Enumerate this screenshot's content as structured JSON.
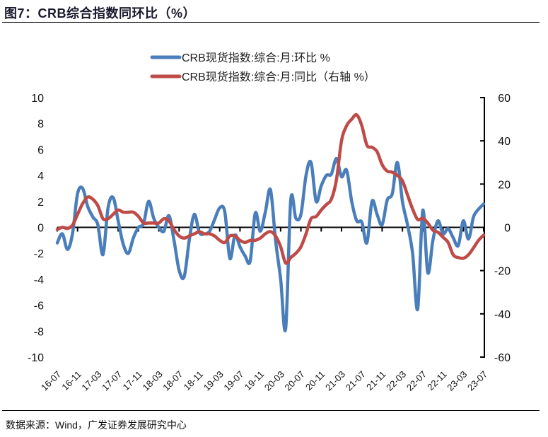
{
  "header": {
    "title": "图7：CRB综合指数同环比（%）"
  },
  "footer": {
    "source": "数据来源：Wind，广发证券发展研究中心"
  },
  "chart_data": {
    "type": "line",
    "title": "",
    "legend_position": "top",
    "grid": false,
    "left_axis": {
      "ylim": [
        -10,
        10
      ],
      "ticks": [
        "10",
        "8",
        "6",
        "4",
        "2",
        "0",
        "-2",
        "-4",
        "-6",
        "-8",
        "-10"
      ]
    },
    "right_axis": {
      "ylim": [
        -60,
        60
      ],
      "ticks": [
        "60",
        "40",
        "20",
        "0",
        "-20",
        "-40",
        "-60"
      ]
    },
    "x_tick_labels": [
      "16-07",
      "16-11",
      "17-03",
      "17-07",
      "17-11",
      "18-03",
      "18-07",
      "18-11",
      "19-03",
      "19-07",
      "19-11",
      "20-03",
      "20-07",
      "20-11",
      "21-03",
      "21-07",
      "21-11",
      "22-03",
      "22-07",
      "22-11",
      "23-03",
      "23-07"
    ],
    "x": [
      "16-07",
      "16-08",
      "16-09",
      "16-10",
      "16-11",
      "16-12",
      "17-01",
      "17-02",
      "17-03",
      "17-04",
      "17-05",
      "17-06",
      "17-07",
      "17-08",
      "17-09",
      "17-10",
      "17-11",
      "17-12",
      "18-01",
      "18-02",
      "18-03",
      "18-04",
      "18-05",
      "18-06",
      "18-07",
      "18-08",
      "18-09",
      "18-10",
      "18-11",
      "18-12",
      "19-01",
      "19-02",
      "19-03",
      "19-04",
      "19-05",
      "19-06",
      "19-07",
      "19-08",
      "19-09",
      "19-10",
      "19-11",
      "19-12",
      "20-01",
      "20-02",
      "20-03",
      "20-04",
      "20-05",
      "20-06",
      "20-07",
      "20-08",
      "20-09",
      "20-10",
      "20-11",
      "20-12",
      "21-01",
      "21-02",
      "21-03",
      "21-04",
      "21-05",
      "21-06",
      "21-07",
      "21-08",
      "21-09",
      "21-10",
      "21-11",
      "21-12",
      "22-01",
      "22-02",
      "22-03",
      "22-04",
      "22-05",
      "22-06",
      "22-07",
      "22-08",
      "22-09",
      "22-10",
      "22-11",
      "22-12",
      "23-01",
      "23-02",
      "23-03",
      "23-04",
      "23-05",
      "23-06",
      "23-07"
    ],
    "series": [
      {
        "name": "CRB现货指数:综合:月:环比 %",
        "axis": "left",
        "color": "#4a7ebb",
        "values": [
          -1.2,
          -0.5,
          -1.7,
          -0.5,
          2.6,
          3.0,
          1.6,
          0.8,
          0.2,
          -2.1,
          1.5,
          2.3,
          0.5,
          -1.3,
          -2.0,
          -0.8,
          0.0,
          0.3,
          2.0,
          0.7,
          0.0,
          -0.3,
          0.9,
          -1.0,
          -3.3,
          -3.8,
          -1.0,
          1.0,
          -0.4,
          -0.5,
          -0.3,
          0.6,
          1.5,
          1.2,
          -2.4,
          -0.6,
          -1.5,
          -2.2,
          -2.6,
          1.1,
          -0.3,
          1.2,
          2.9,
          -1.0,
          -4.0,
          -7.8,
          2.1,
          0.7,
          1.0,
          4.0,
          5.0,
          2.0,
          3.2,
          4.0,
          4.1,
          5.3,
          3.9,
          4.4,
          2.0,
          0.5,
          0.4,
          -1.2,
          2.0,
          1.0,
          0.2,
          2.1,
          2.6,
          5.0,
          2.0,
          0.2,
          -2.0,
          -6.3,
          1.3,
          -3.5,
          -1.0,
          0.5,
          -0.5,
          -0.1,
          -0.8,
          -1.4,
          0.5,
          -0.9,
          0.8,
          1.4,
          1.8
        ]
      },
      {
        "name": "CRB现货指数:综合:月:同比（右轴 %）",
        "axis": "right",
        "color": "#be4b48",
        "values": [
          -1,
          0,
          -0.5,
          1,
          6,
          11,
          14,
          13,
          10,
          4,
          4,
          6,
          8,
          7,
          7,
          7,
          5,
          2,
          2,
          2,
          2,
          4,
          3,
          -1,
          -4,
          -5,
          -4,
          -3,
          -2,
          -3,
          -3,
          -4,
          -6,
          -7,
          -4,
          -4,
          -6,
          -7,
          -6,
          -6,
          -5,
          -3,
          -2,
          -4,
          -9,
          -16.5,
          -14,
          -12,
          -9,
          -3,
          4,
          5,
          8,
          10.5,
          13,
          22,
          40,
          47,
          50,
          52,
          47,
          38,
          37,
          35,
          29,
          26,
          25.5,
          24,
          21.5,
          15,
          8.5,
          3.6,
          4.2,
          2,
          -1.3,
          -2.3,
          -4.6,
          -7,
          -12.7,
          -14,
          -14.3,
          -12.7,
          -9.5,
          -6,
          -3.6
        ]
      }
    ]
  }
}
